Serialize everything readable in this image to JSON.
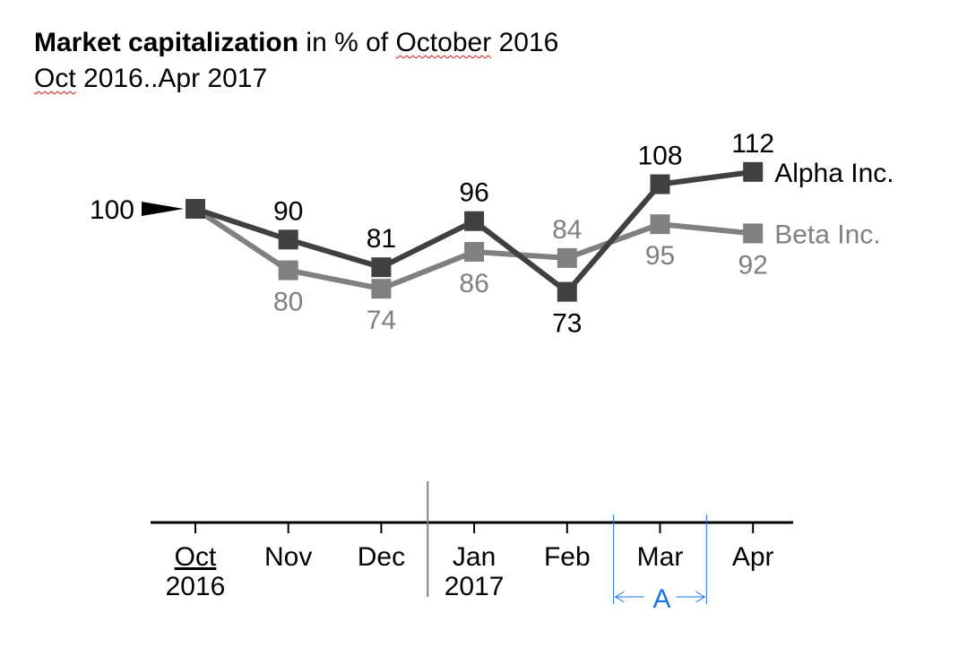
{
  "title": {
    "bold": "Market capitalization",
    "rest_prefix": " in % of ",
    "rest_month": "October",
    "rest_year": " 2016",
    "subtitle_prefix": "Oct",
    "subtitle_rest": " 2016..Apr 2017"
  },
  "colors": {
    "alpha": "#404040",
    "beta": "#808080",
    "axis": "#000000",
    "divider": "#808080",
    "annotation": "#1a73e8"
  },
  "chart_data": {
    "type": "line",
    "categories": [
      "Oct",
      "Nov",
      "Dec",
      "Jan",
      "Feb",
      "Mar",
      "Apr"
    ],
    "category_sublabels": [
      "2016",
      "",
      "",
      "2017",
      "",
      "",
      ""
    ],
    "series": [
      {
        "name": "Alpha Inc.",
        "values": [
          100,
          90,
          81,
          96,
          73,
          108,
          112
        ],
        "labels": [
          "",
          "90",
          "81",
          "96",
          "73",
          "108",
          "112"
        ]
      },
      {
        "name": "Beta Inc.",
        "values": [
          100,
          80,
          74,
          86,
          84,
          95,
          92
        ],
        "labels": [
          "",
          "80",
          "74",
          "86",
          "84",
          "95",
          "92"
        ]
      }
    ],
    "start_marker_label": "100",
    "annotation": {
      "label": "A",
      "category": "Mar"
    },
    "year_divider_between": [
      "Dec",
      "Jan"
    ],
    "legend": "inline-right",
    "grid": false
  }
}
